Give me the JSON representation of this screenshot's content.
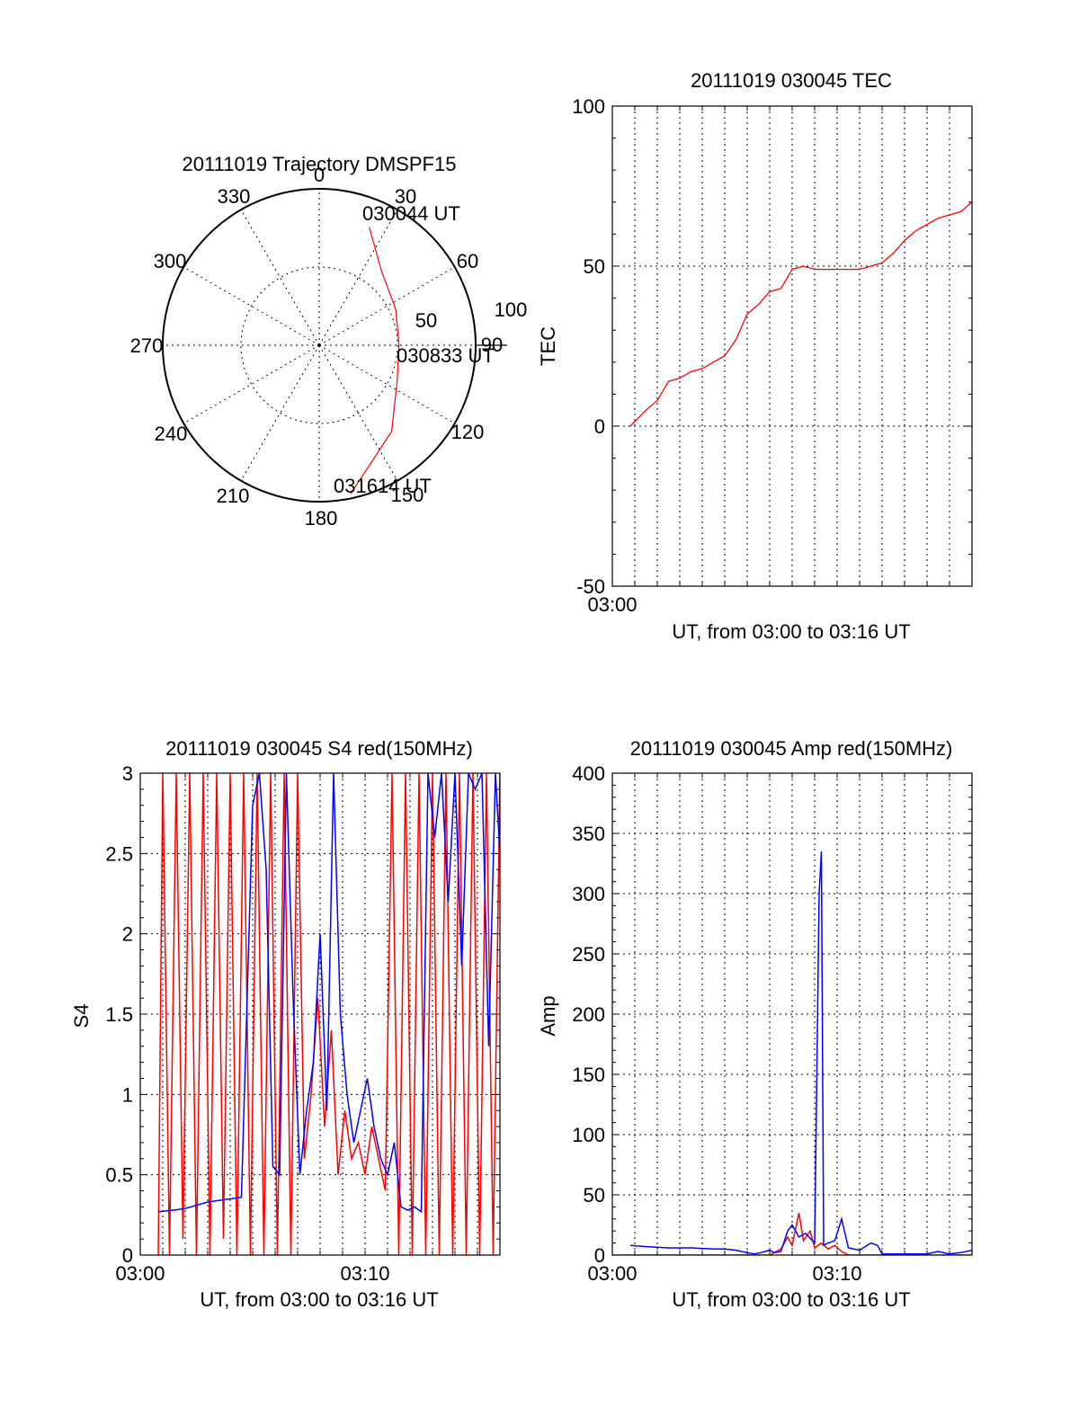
{
  "colors": {
    "red": "#ff0000",
    "blue": "#0000ff",
    "axis": "#000000"
  },
  "chart_data": [
    {
      "type": "polar",
      "title": "20111019 Trajectory DMSPF15",
      "angle_labels": [
        "0",
        "30",
        "60",
        "90",
        "120",
        "150",
        "180",
        "210",
        "240",
        "270",
        "300",
        "330"
      ],
      "radial_labels": [
        "50",
        "100"
      ],
      "rlim": [
        0,
        100
      ],
      "annotations": [
        "030044 UT",
        "030833 UT",
        "031614 UT"
      ],
      "trajectory": {
        "name": "",
        "color": "#ff0000",
        "points": [
          {
            "az": 23,
            "r": 82
          },
          {
            "az": 40,
            "r": 62
          },
          {
            "az": 65,
            "r": 54
          },
          {
            "az": 90,
            "r": 51
          },
          {
            "az": 115,
            "r": 55
          },
          {
            "az": 140,
            "r": 72
          },
          {
            "az": 168,
            "r": 97
          }
        ]
      }
    },
    {
      "type": "line",
      "title": "20111019 030045 TEC",
      "xlabel": "UT, from 03:00 to 03:16 UT",
      "ylabel": "TEC",
      "xlim": [
        0,
        16
      ],
      "ylim": [
        -50,
        100
      ],
      "xticks": [
        {
          "x": 0,
          "label": "03:00"
        }
      ],
      "yticks": [
        "-50",
        "0",
        "50",
        "100"
      ],
      "grid": true,
      "series": [
        {
          "name": "",
          "color": "#ff0000",
          "x": [
            0.8,
            1.5,
            2,
            2.5,
            3,
            3.5,
            4,
            4.5,
            5,
            5.5,
            6,
            6.5,
            7,
            7.5,
            8,
            8.5,
            9,
            9.5,
            10,
            10.5,
            11,
            11.5,
            12,
            12.5,
            13,
            13.5,
            14,
            14.5,
            15,
            15.5,
            16
          ],
          "y": [
            0,
            5,
            8,
            14,
            15,
            17,
            18,
            20,
            22,
            27,
            35,
            38,
            42,
            43,
            49,
            50,
            49,
            49,
            49,
            49,
            49,
            50,
            51,
            54,
            58,
            61,
            63,
            65,
            66,
            67,
            70
          ]
        }
      ]
    },
    {
      "type": "line",
      "title": "20111019 030045 S4 red(150MHz)",
      "xlabel": "UT, from 03:00 to 03:16 UT",
      "ylabel": "S4",
      "xlim": [
        0,
        16
      ],
      "ylim": [
        0,
        3
      ],
      "xticks": [
        {
          "x": 0,
          "label": "03:00"
        },
        {
          "x": 10,
          "label": "03:10"
        }
      ],
      "yticks": [
        "0",
        "0.5",
        "1",
        "1.5",
        "2",
        "2.5",
        "3"
      ],
      "grid": true,
      "series": [
        {
          "name": "",
          "color": "#ff0000",
          "x": [
            0.8,
            1.0,
            1.3,
            1.6,
            1.9,
            2.2,
            2.5,
            2.8,
            3.1,
            3.4,
            3.7,
            4.0,
            4.3,
            4.6,
            4.9,
            5.2,
            5.5,
            5.8,
            6.1,
            6.4,
            6.7,
            7.0,
            7.3,
            7.6,
            7.9,
            8.2,
            8.5,
            8.8,
            9.1,
            9.4,
            9.7,
            10.0,
            10.3,
            10.6,
            10.9,
            11.2,
            11.5,
            11.8,
            12.1,
            12.4,
            12.7,
            13.0,
            13.3,
            13.6,
            13.9,
            14.2,
            14.5,
            14.8,
            15.1,
            15.4,
            15.7,
            16.0
          ],
          "y": [
            0,
            3,
            0,
            3,
            0.1,
            3,
            0,
            3,
            0,
            3,
            0.1,
            3,
            0,
            3,
            0,
            3,
            0,
            3,
            0,
            3,
            0,
            3,
            0.6,
            1.0,
            1.6,
            0.8,
            1.4,
            0.5,
            0.9,
            0.6,
            0.7,
            0.5,
            0.8,
            0.6,
            0.4,
            3,
            0,
            3,
            0,
            3,
            0,
            3,
            0,
            3,
            0,
            3,
            0,
            3,
            0,
            3,
            0,
            3
          ]
        },
        {
          "name": "",
          "color": "#0000ff",
          "x": [
            0.8,
            1.5,
            2.0,
            2.5,
            3.0,
            3.5,
            4.0,
            4.5,
            5.0,
            5.3,
            5.6,
            5.9,
            6.2,
            6.5,
            6.8,
            7.1,
            7.4,
            7.7,
            8.0,
            8.3,
            8.6,
            8.9,
            9.2,
            9.5,
            9.8,
            10.1,
            10.4,
            10.7,
            11.0,
            11.3,
            11.6,
            11.9,
            12.2,
            12.5,
            12.8,
            13.1,
            13.4,
            13.7,
            14.0,
            14.3,
            14.6,
            14.9,
            15.2,
            15.5,
            15.8,
            16.0
          ],
          "y": [
            0.27,
            0.28,
            0.29,
            0.31,
            0.33,
            0.34,
            0.35,
            0.36,
            2.8,
            3.0,
            2.4,
            0.55,
            0.5,
            3.0,
            1.6,
            0.5,
            0.9,
            1.2,
            2.0,
            0.9,
            3.0,
            1.5,
            1.0,
            0.7,
            0.9,
            1.1,
            0.8,
            0.6,
            0.5,
            0.7,
            0.3,
            0.28,
            0.3,
            0.27,
            3.0,
            2.6,
            3.0,
            2.2,
            3.0,
            1.8,
            3.0,
            2.9,
            3.0,
            1.3,
            3.0,
            2.5
          ]
        }
      ]
    },
    {
      "type": "line",
      "title": "20111019 030045 Amp red(150MHz)",
      "xlabel": "UT, from 03:00 to 03:16 UT",
      "ylabel": "Amp",
      "xlim": [
        0,
        16
      ],
      "ylim": [
        0,
        400
      ],
      "xticks": [
        {
          "x": 0,
          "label": "03:00"
        },
        {
          "x": 10,
          "label": "03:10"
        }
      ],
      "yticks": [
        "0",
        "50",
        "100",
        "150",
        "200",
        "250",
        "300",
        "350",
        "400"
      ],
      "grid": true,
      "series": [
        {
          "name": "",
          "color": "#ff0000",
          "x": [
            0,
            7.0,
            7.5,
            7.8,
            8.0,
            8.3,
            8.5,
            8.8,
            9.0,
            9.3,
            9.6,
            9.9,
            10.2,
            10.5,
            16
          ],
          "y": [
            0,
            0,
            5,
            15,
            8,
            35,
            12,
            20,
            6,
            10,
            5,
            8,
            3,
            0,
            0
          ]
        },
        {
          "name": "",
          "color": "#0000ff",
          "x": [
            0.8,
            1.5,
            2.5,
            3.5,
            4.5,
            5.0,
            5.5,
            6.0,
            6.3,
            6.6,
            7.0,
            7.2,
            7.5,
            7.8,
            8.0,
            8.3,
            8.6,
            9.0,
            9.2,
            9.3,
            9.4,
            9.6,
            9.9,
            10.2,
            10.5,
            11.0,
            11.5,
            11.8,
            12.0,
            13.0,
            14.0,
            14.5,
            15.0,
            15.5,
            16.0
          ],
          "y": [
            8,
            7,
            6,
            6,
            5,
            5,
            4,
            2,
            1,
            2,
            4,
            2,
            3,
            20,
            25,
            15,
            18,
            10,
            300,
            335,
            8,
            10,
            12,
            30,
            6,
            4,
            10,
            8,
            1,
            1,
            1,
            3,
            1,
            2,
            4
          ]
        }
      ]
    }
  ]
}
